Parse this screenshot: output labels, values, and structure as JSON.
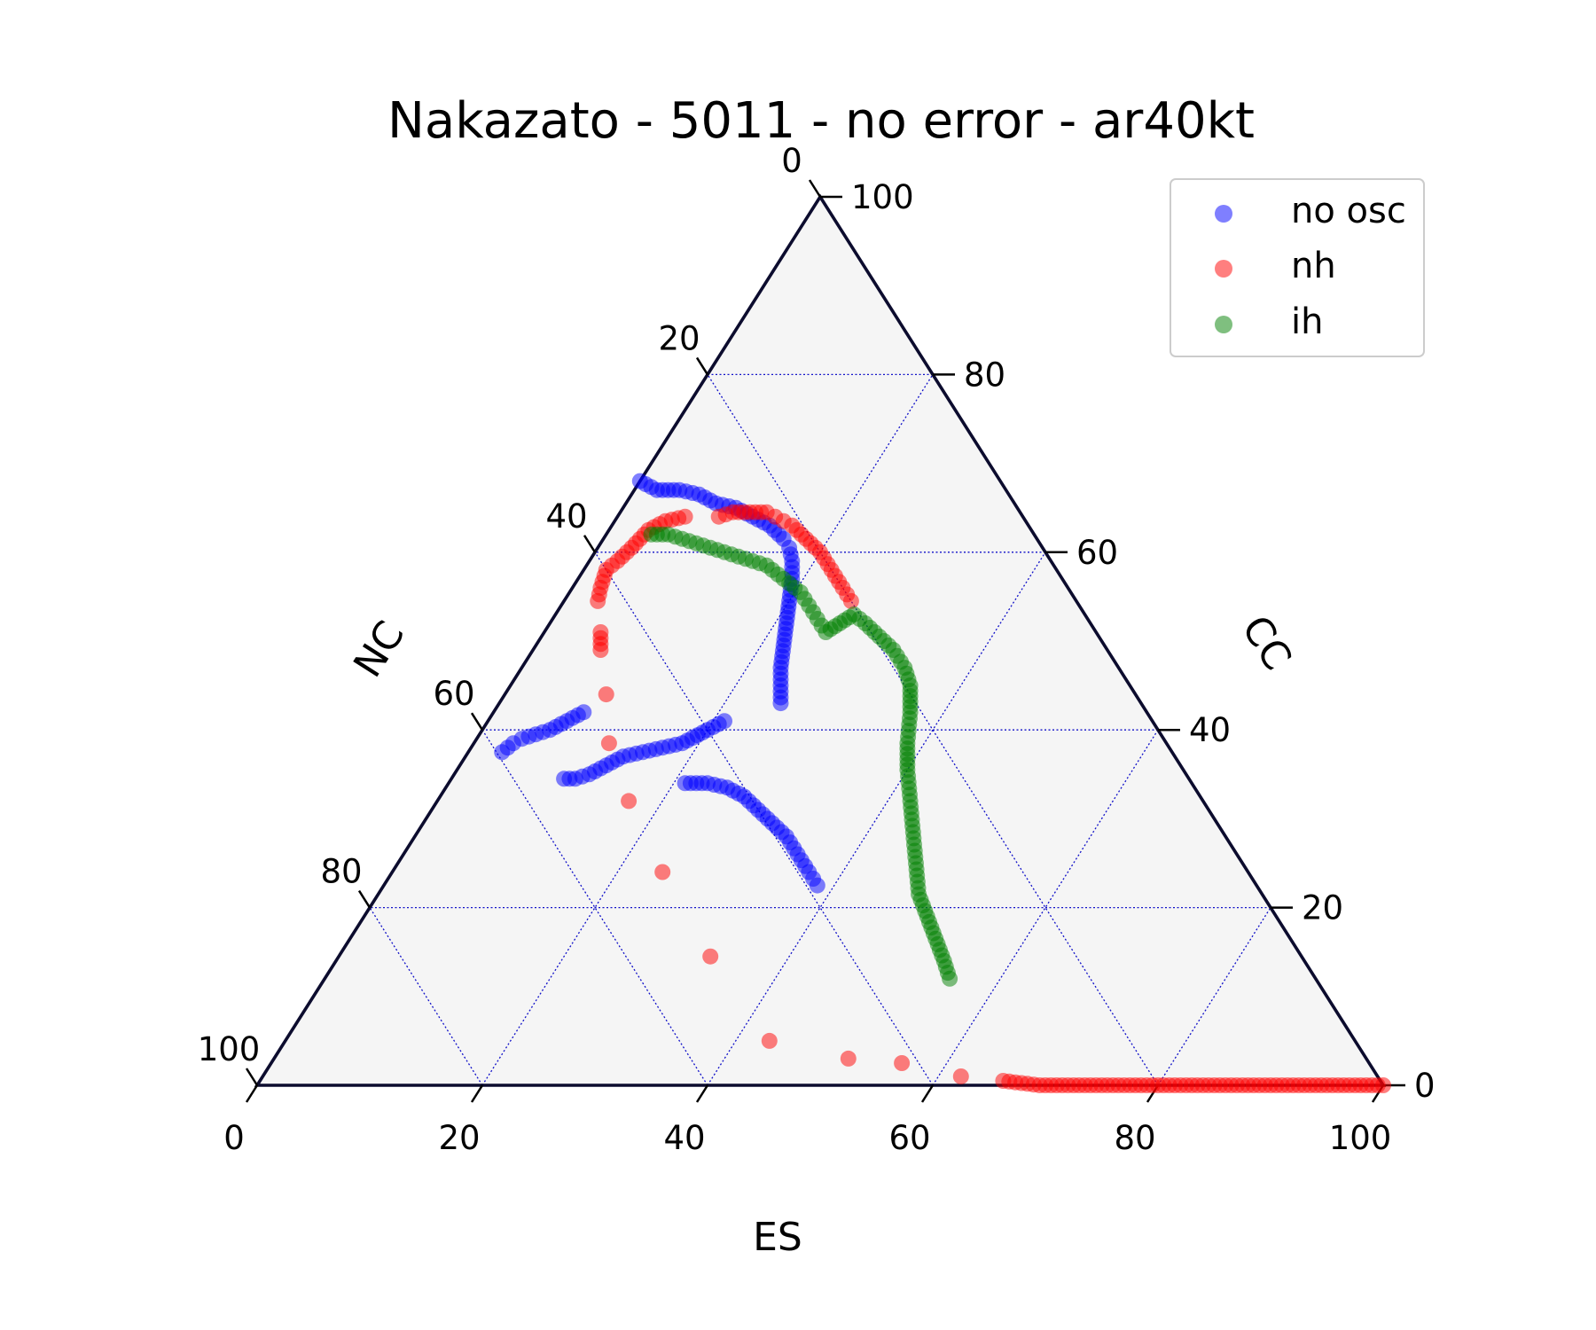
{
  "chart_data": {
    "type": "scatter",
    "subtype": "ternary",
    "title": "Nakazato - 5011 - no error - ar40kt",
    "axes": {
      "bottom": {
        "label": "ES",
        "ticks": [
          "0",
          "20",
          "40",
          "60",
          "80",
          "100"
        ],
        "range": [
          0,
          100
        ]
      },
      "left": {
        "label": "NC",
        "ticks": [
          "0",
          "20",
          "40",
          "60",
          "80",
          "100"
        ],
        "range": [
          0,
          100
        ]
      },
      "right": {
        "label": "CC",
        "ticks": [
          "0",
          "20",
          "40",
          "60",
          "80",
          "100"
        ],
        "range": [
          0,
          100
        ]
      }
    },
    "grid": true,
    "grid_color": "#0000cc",
    "legend": {
      "placement": "top-right"
    },
    "series": [
      {
        "name": "no osc",
        "color": "#0000ff",
        "points": [
          [
            0.0,
            32.0,
            68.0
          ],
          [
            2.0,
            31.0,
            67.0
          ],
          [
            4.0,
            29.0,
            67.0
          ],
          [
            6.0,
            27.5,
            66.5
          ],
          [
            8.0,
            26.5,
            65.5
          ],
          [
            10.0,
            25.0,
            65.0
          ],
          [
            12.0,
            24.0,
            64.0
          ],
          [
            14.0,
            23.0,
            63.0
          ],
          [
            16.0,
            22.5,
            61.5
          ],
          [
            17.0,
            22.5,
            60.5
          ],
          [
            18.0,
            23.0,
            59.0
          ],
          [
            19.0,
            24.0,
            57.0
          ],
          [
            20.0,
            25.5,
            54.5
          ],
          [
            21.0,
            27.0,
            52.0
          ],
          [
            22.0,
            28.5,
            49.5
          ],
          [
            23.0,
            30.0,
            47.0
          ],
          [
            24.0,
            31.0,
            45.0
          ],
          [
            25.0,
            32.0,
            43.0
          ],
          [
            21.0,
            38.0,
            41.0
          ],
          [
            20.0,
            40.0,
            40.0
          ],
          [
            18.5,
            43.0,
            38.5
          ],
          [
            17.0,
            45.0,
            38.0
          ],
          [
            15.5,
            47.0,
            37.5
          ],
          [
            14.0,
            49.0,
            37.0
          ],
          [
            13.0,
            51.0,
            36.0
          ],
          [
            12.0,
            53.0,
            35.0
          ],
          [
            11.0,
            54.5,
            34.5
          ],
          [
            10.0,
            55.5,
            34.5
          ],
          [
            8.0,
            50.0,
            42.0
          ],
          [
            7.0,
            52.0,
            41.0
          ],
          [
            6.0,
            54.0,
            40.0
          ],
          [
            5.0,
            55.5,
            39.5
          ],
          [
            4.0,
            57.0,
            39.0
          ],
          [
            3.5,
            58.0,
            38.5
          ],
          [
            3.0,
            59.5,
            37.5
          ],
          [
            21.0,
            45.0,
            34.0
          ],
          [
            23.0,
            43.0,
            34.0
          ],
          [
            25.0,
            41.5,
            33.5
          ],
          [
            27.0,
            40.5,
            32.5
          ],
          [
            29.0,
            40.0,
            31.0
          ],
          [
            31.0,
            39.5,
            29.5
          ],
          [
            33.0,
            39.0,
            28.0
          ],
          [
            35.0,
            39.0,
            26.0
          ],
          [
            37.0,
            39.0,
            24.0
          ],
          [
            38.5,
            39.0,
            22.5
          ]
        ]
      },
      {
        "name": "nh",
        "color": "#ff0000",
        "points": [
          [
            9.0,
            27.0,
            64.0
          ],
          [
            10.0,
            25.5,
            64.5
          ],
          [
            11.0,
            24.5,
            64.5
          ],
          [
            12.0,
            23.5,
            64.5
          ],
          [
            13.0,
            22.5,
            64.5
          ],
          [
            14.0,
            22.0,
            64.0
          ],
          [
            15.0,
            21.5,
            63.5
          ],
          [
            6.0,
            30.0,
            64.0
          ],
          [
            4.5,
            32.0,
            63.5
          ],
          [
            3.5,
            34.0,
            62.5
          ],
          [
            3.0,
            36.5,
            60.5
          ],
          [
            2.5,
            38.5,
            59.0
          ],
          [
            2.0,
            40.0,
            58.0
          ],
          [
            2.5,
            41.5,
            56.0
          ],
          [
            3.0,
            42.5,
            54.5
          ],
          [
            16.0,
            21.0,
            63.0
          ],
          [
            18.0,
            20.5,
            61.5
          ],
          [
            20.0,
            20.0,
            60.0
          ],
          [
            22.0,
            20.0,
            58.0
          ],
          [
            24.0,
            20.0,
            56.0
          ],
          [
            25.5,
            20.0,
            54.5
          ],
          [
            5.0,
            44.0,
            51.0
          ],
          [
            6.0,
            45.0,
            49.0
          ],
          [
            9.0,
            47.0,
            44.0
          ],
          [
            12.0,
            49.5,
            38.5
          ],
          [
            17.0,
            51.0,
            32.0
          ],
          [
            24.0,
            52.0,
            24.0
          ],
          [
            33.0,
            52.5,
            14.5
          ],
          [
            43.0,
            52.0,
            5.0
          ],
          [
            51.0,
            46.0,
            3.0
          ],
          [
            56.0,
            41.5,
            2.5
          ],
          [
            62.0,
            37.0,
            1.0
          ],
          [
            66.0,
            33.5,
            0.5
          ],
          [
            69.5,
            30.5,
            0.0
          ],
          [
            71.0,
            29.0,
            0.0
          ],
          [
            72.5,
            27.5,
            0.0
          ],
          [
            74.0,
            26.0,
            0.0
          ],
          [
            76.0,
            24.0,
            0.0
          ],
          [
            78.0,
            22.0,
            0.0
          ],
          [
            80.0,
            20.0,
            0.0
          ],
          [
            82.0,
            18.0,
            0.0
          ],
          [
            84.0,
            16.0,
            0.0
          ],
          [
            86.0,
            14.0,
            0.0
          ],
          [
            88.0,
            12.0,
            0.0
          ],
          [
            90.0,
            10.0,
            0.0
          ],
          [
            92.0,
            8.0,
            0.0
          ],
          [
            94.0,
            6.0,
            0.0
          ],
          [
            96.0,
            4.0,
            0.0
          ],
          [
            98.0,
            2.0,
            0.0
          ],
          [
            99.0,
            1.0,
            0.0
          ],
          [
            100.0,
            0.0,
            0.0
          ]
        ]
      },
      {
        "name": "ih",
        "color": "#008000",
        "points": [
          [
            4.0,
            34.0,
            62.0
          ],
          [
            5.5,
            32.5,
            62.0
          ],
          [
            7.0,
            31.5,
            61.5
          ],
          [
            8.5,
            30.5,
            61.0
          ],
          [
            10.0,
            29.5,
            60.5
          ],
          [
            11.5,
            28.5,
            60.0
          ],
          [
            13.0,
            27.5,
            59.5
          ],
          [
            14.5,
            26.5,
            59.0
          ],
          [
            16.0,
            25.5,
            58.5
          ],
          [
            17.5,
            25.0,
            57.5
          ],
          [
            19.0,
            24.5,
            56.5
          ],
          [
            20.5,
            24.0,
            55.5
          ],
          [
            22.0,
            24.0,
            54.0
          ],
          [
            23.5,
            24.0,
            52.5
          ],
          [
            25.0,
            24.0,
            51.0
          ],
          [
            26.5,
            20.5,
            53.0
          ],
          [
            28.0,
            20.0,
            52.0
          ],
          [
            30.0,
            19.5,
            50.5
          ],
          [
            32.0,
            19.0,
            49.0
          ],
          [
            34.0,
            19.0,
            47.0
          ],
          [
            35.5,
            19.5,
            45.0
          ],
          [
            37.0,
            21.0,
            42.0
          ],
          [
            38.5,
            23.0,
            38.5
          ],
          [
            40.0,
            24.5,
            35.5
          ],
          [
            42.0,
            26.0,
            32.0
          ],
          [
            44.0,
            27.5,
            28.5
          ],
          [
            46.0,
            29.0,
            25.0
          ],
          [
            48.0,
            30.5,
            21.5
          ],
          [
            50.0,
            31.0,
            19.0
          ],
          [
            52.0,
            31.5,
            16.5
          ],
          [
            54.0,
            32.0,
            14.0
          ],
          [
            55.5,
            32.5,
            12.0
          ]
        ]
      }
    ]
  }
}
